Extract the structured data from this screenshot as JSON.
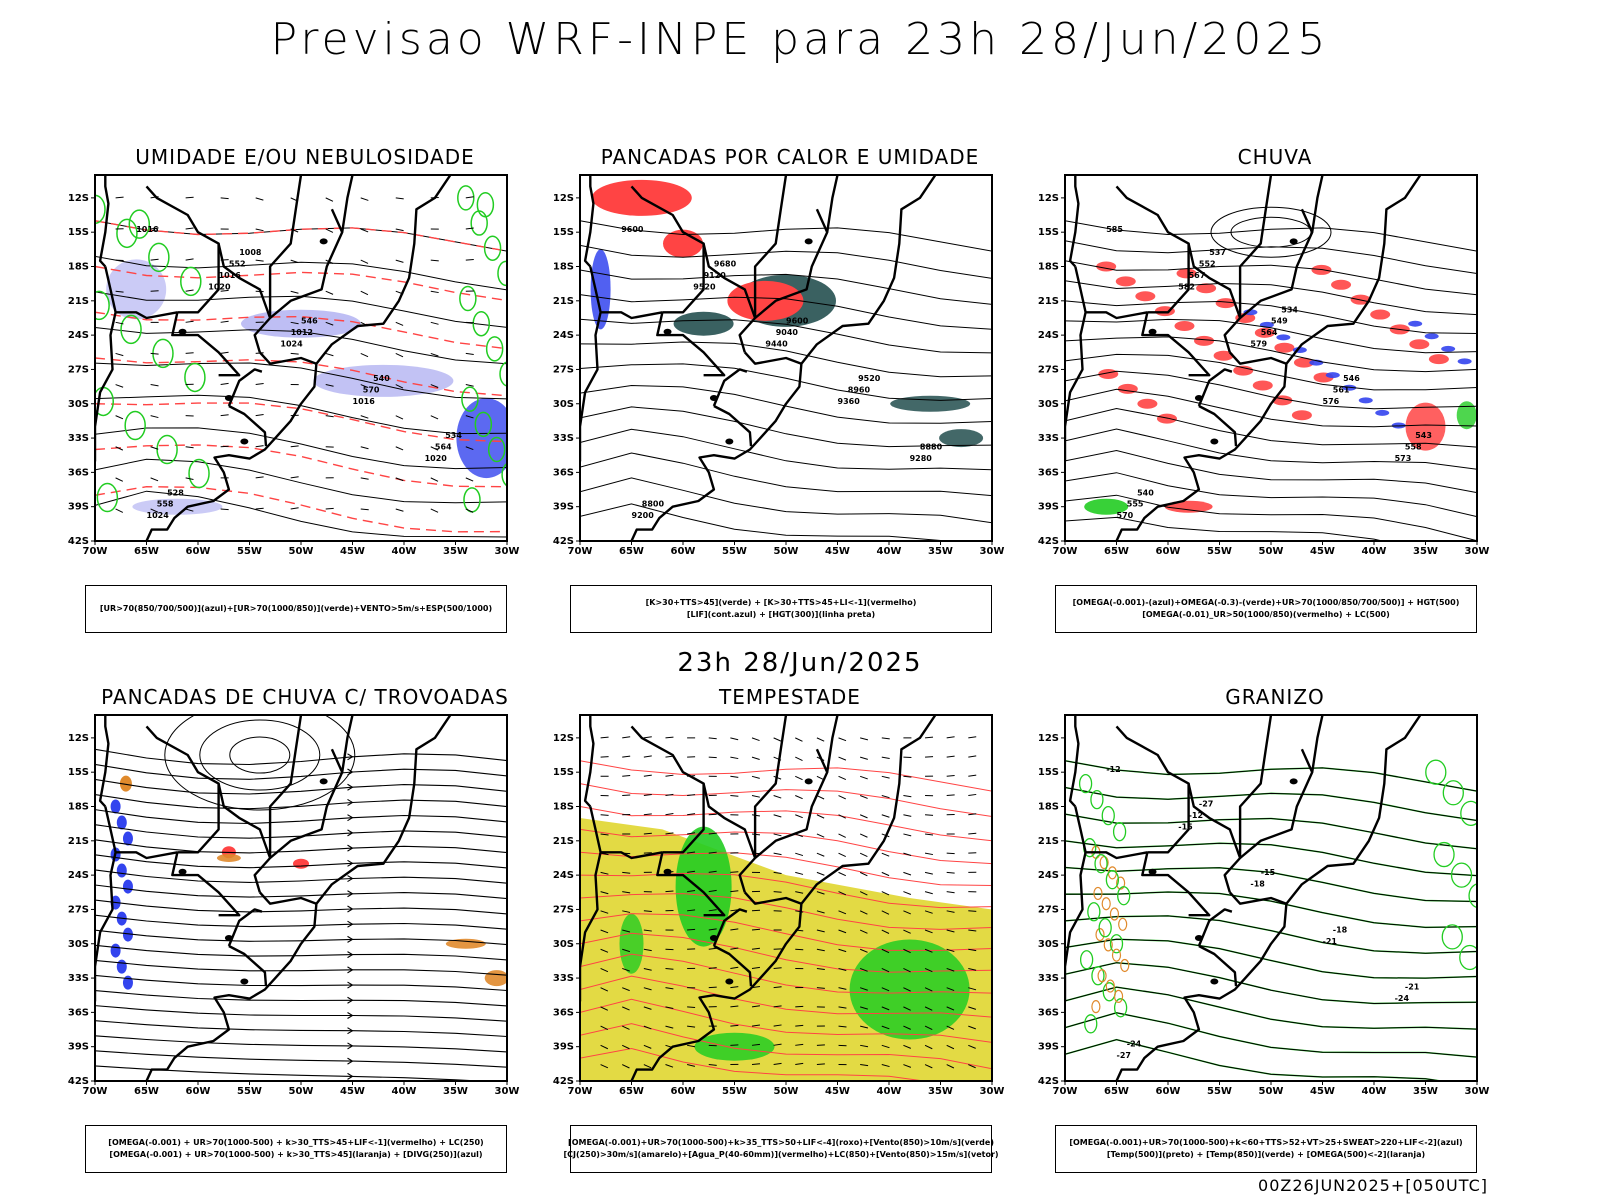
{
  "title": "Previsao WRF-INPE  para 23h 28/Jun/2025",
  "subtitle": "23h 28/Jun/2025",
  "footer": "00Z26JUN2025+[050UTC]",
  "axes": {
    "lat_labels": [
      "12S",
      "15S",
      "18S",
      "21S",
      "24S",
      "27S",
      "30S",
      "33S",
      "36S",
      "39S",
      "42S"
    ],
    "lon_labels": [
      "70W",
      "65W",
      "60W",
      "55W",
      "50W",
      "45W",
      "40W",
      "35W",
      "30W"
    ]
  },
  "colors": {
    "green": "#22cc22",
    "red": "#ff4444",
    "blue": "#3344ee",
    "lavender": "#a8a8f0",
    "darkteal": "#2f5858",
    "orange": "#e08a2c",
    "yellow": "#e2d83a",
    "purple": "#8855aa"
  },
  "panels": [
    {
      "title": "UMIDADE E/OU NEBULOSIDADE",
      "legend": [
        "[UR>70(850/700/500)](azul)+[UR>70(1000/850)](verde)+VENTO>5m/s+ESP(500/1000)"
      ],
      "labels": [
        "1016",
        "1020",
        "1024",
        "1016",
        "1020",
        "1024",
        "1016",
        "1012",
        "570",
        "564",
        "558",
        "552",
        "546",
        "540",
        "534",
        "528",
        "1008"
      ]
    },
    {
      "title": "PANCADAS POR CALOR E UMIDADE",
      "legend": [
        "[K>30+TTS>45](verde) + [K>30+TTS>45+LI<-1](vermelho)",
        "[LIF](cont.azul) + [HGT(300)](linha preta)"
      ],
      "labels": [
        "9600",
        "9520",
        "9440",
        "9360",
        "9280",
        "9200",
        "9120",
        "9040",
        "8960",
        "8880",
        "8800",
        "9680",
        "9600",
        "9520"
      ]
    },
    {
      "title": "CHUVA",
      "legend": [
        "[OMEGA(-0.001)-(azul)+OMEGA(-0.3)-(verde)+UR>70(1000/850/700/500)] + HGT(500)",
        "[OMEGA(-0.01)_UR>50(1000/850)(vermelho) + LC(500)"
      ],
      "labels": [
        "585",
        "582",
        "579",
        "576",
        "573",
        "570",
        "567",
        "564",
        "561",
        "558",
        "555",
        "552",
        "549",
        "546",
        "543",
        "540",
        "537",
        "534"
      ]
    },
    {
      "title": "PANCADAS DE CHUVA C/ TROVOADAS",
      "legend": [
        "[OMEGA(-0.001) + UR>70(1000-500) + k>30_TTS>45+LIF<-1](vermelho) + LC(250)",
        "[OMEGA(-0.001) + UR>70(1000-500) + k>30_TTS>45](laranja) + [DIVG(250)](azul)"
      ],
      "labels": []
    },
    {
      "title": "TEMPESTADE",
      "legend": [
        "[OMEGA(-0.001)+UR>70(1000-500)+k>35_TTS>50+LIF<-4](roxo)+[Vento(850)>10m/s](verde)",
        "[CJ(250)>30m/s](amarelo)+[Agua_P(40-60mm)](vermelho)+LC(850)+[Vento(850)>15m/s](vetor)"
      ],
      "labels": []
    },
    {
      "title": "GRANIZO",
      "legend": [
        "[OMEGA(-0.001)+UR>70(1000-500)+k<60+TTS>52+VT>25+SWEAT>220+LIF<-2](azul)",
        "[Temp(500)](preto) + [Temp(850)](verde) + [OMEGA(500)<-2](laranja)"
      ],
      "labels": [
        "-12",
        "-15",
        "-18",
        "-21",
        "-24",
        "-27",
        "-12",
        "-15",
        "-18",
        "-21",
        "-24",
        "-27"
      ]
    }
  ]
}
